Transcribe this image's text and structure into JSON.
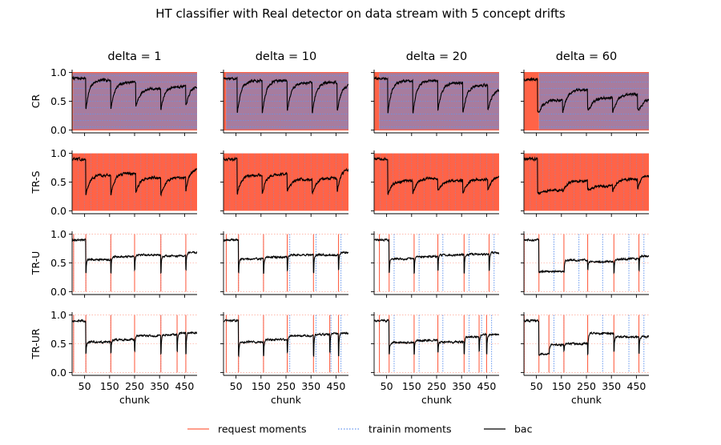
{
  "figure": {
    "title": "HT classifier with Real detector on data stream with 5 concept drifts",
    "colors": {
      "request": "#ff6347",
      "training": "#6495ed",
      "bac": "#000000",
      "full_overlay": "#a77c9e"
    }
  },
  "chart_data": {
    "type": "line",
    "columns": [
      "delta = 1",
      "delta = 10",
      "delta = 20",
      "delta = 60"
    ],
    "deltas": [
      1,
      10,
      20,
      60
    ],
    "rows": [
      "CR",
      "TR-S",
      "TR-U",
      "TR-UR"
    ],
    "xlabel": "chunk",
    "x_ticks": [
      50,
      150,
      250,
      350,
      450
    ],
    "y_ticks": [
      0.0,
      0.5,
      1.0
    ],
    "y_tick_labels": [
      "0.0",
      "0.5",
      "1.0"
    ],
    "xlim": [
      0,
      500
    ],
    "ylim": [
      -0.05,
      1.05
    ],
    "drift_points": [
      55,
      155,
      255,
      355,
      455
    ],
    "legend": {
      "placement": "bottom-center",
      "entries": [
        {
          "label": "request moments",
          "style": "solid",
          "color": "#ff6347"
        },
        {
          "label": "trainin moments",
          "style": "dotted",
          "color": "#6495ed"
        },
        {
          "label": "bac",
          "style": "solid",
          "color": "#000000"
        }
      ]
    },
    "panels": [
      [
        {
          "mode": "full",
          "lead": [
            1,
            4
          ],
          "drops": [
            55,
            155,
            255,
            355,
            455
          ],
          "pre": 0.9,
          "min": 0.37,
          "levels": [
            0.9,
            0.87,
            0.83,
            0.72,
            0.76,
            0.77
          ],
          "recover": 0.2,
          "noise": 0.02
        },
        {
          "mode": "full",
          "lead": [
            1,
            4
          ],
          "drops": [
            55,
            155,
            255,
            355,
            455
          ],
          "pre": 0.9,
          "min": 0.28,
          "levels": [
            0.9,
            0.62,
            0.65,
            0.58,
            0.57,
            0.74
          ],
          "recover": 0.15,
          "noise": 0.02
        },
        {
          "mode": "lines",
          "requests": [
            6,
            55,
            155,
            250,
            355,
            455
          ],
          "trainings": [
            6,
            55,
            155,
            250,
            355,
            455
          ],
          "pre": 0.9,
          "min": 0.34,
          "levels": [
            0.9,
            0.56,
            0.61,
            0.64,
            0.62,
            0.68
          ],
          "recover": 0.0,
          "noise": 0.015
        },
        {
          "mode": "lines",
          "requests": [
            6,
            55,
            155,
            250,
            355,
            420,
            455
          ],
          "trainings": [
            6,
            55,
            155,
            250,
            355,
            420,
            455
          ],
          "pre": 0.9,
          "min": 0.33,
          "levels": [
            0.9,
            0.53,
            0.57,
            0.64,
            0.66,
            0.69
          ],
          "recover": 0.0,
          "noise": 0.015
        }
      ],
      [
        {
          "mode": "full",
          "lead": [
            1,
            10
          ],
          "drops": [
            55,
            155,
            255,
            355,
            455
          ],
          "pre": 0.9,
          "min": 0.3,
          "levels": [
            0.9,
            0.86,
            0.86,
            0.82,
            0.83,
            0.8
          ],
          "recover": 0.25,
          "noise": 0.02
        },
        {
          "mode": "full",
          "lead": [
            1,
            10
          ],
          "drops": [
            55,
            155,
            255,
            355,
            455
          ],
          "pre": 0.9,
          "min": 0.3,
          "levels": [
            0.9,
            0.62,
            0.64,
            0.55,
            0.57,
            0.73
          ],
          "recover": 0.15,
          "noise": 0.02
        },
        {
          "mode": "lines",
          "requests": [
            11,
            60,
            160,
            255,
            360,
            460
          ],
          "trainings": [
            11,
            60,
            160,
            265,
            370,
            470
          ],
          "pre": 0.9,
          "min": 0.33,
          "levels": [
            0.9,
            0.57,
            0.6,
            0.64,
            0.64,
            0.68
          ],
          "recover": 0.0,
          "noise": 0.015
        },
        {
          "mode": "lines",
          "requests": [
            11,
            60,
            160,
            255,
            360,
            425,
            460
          ],
          "trainings": [
            11,
            60,
            160,
            265,
            370,
            430,
            470
          ],
          "pre": 0.9,
          "min": 0.3,
          "levels": [
            0.9,
            0.53,
            0.57,
            0.64,
            0.66,
            0.68
          ],
          "recover": 0.0,
          "noise": 0.015
        }
      ],
      [
        {
          "mode": "full",
          "lead": [
            1,
            20
          ],
          "drops": [
            55,
            155,
            255,
            355,
            455
          ],
          "pre": 0.9,
          "min": 0.3,
          "levels": [
            0.9,
            0.86,
            0.86,
            0.82,
            0.78,
            0.72
          ],
          "recover": 0.25,
          "noise": 0.02
        },
        {
          "mode": "full",
          "lead": [
            1,
            20
          ],
          "drops": [
            55,
            155,
            255,
            355,
            455
          ],
          "pre": 0.9,
          "min": 0.31,
          "levels": [
            0.9,
            0.52,
            0.57,
            0.53,
            0.55,
            0.6
          ],
          "recover": 0.15,
          "noise": 0.02
        },
        {
          "mode": "lines",
          "requests": [
            21,
            60,
            160,
            255,
            360,
            460
          ],
          "trainings": [
            21,
            80,
            180,
            275,
            380,
            480
          ],
          "pre": 0.9,
          "min": 0.33,
          "levels": [
            0.9,
            0.57,
            0.61,
            0.64,
            0.65,
            0.68
          ],
          "recover": 0.0,
          "noise": 0.015
        },
        {
          "mode": "lines",
          "requests": [
            21,
            60,
            160,
            255,
            360,
            420,
            450
          ],
          "trainings": [
            21,
            80,
            180,
            275,
            380,
            430,
            470
          ],
          "pre": 0.9,
          "min": 0.32,
          "levels": [
            0.9,
            0.52,
            0.56,
            0.53,
            0.62,
            0.66
          ],
          "recover": 0.0,
          "noise": 0.015
        }
      ],
      [
        {
          "mode": "full",
          "lead": [
            1,
            60
          ],
          "drops": [
            55,
            155,
            255,
            355,
            455
          ],
          "pre": 0.88,
          "min": 0.32,
          "levels": [
            0.88,
            0.52,
            0.7,
            0.56,
            0.62,
            0.55
          ],
          "recover": 0.25,
          "noise": 0.02
        },
        {
          "mode": "full",
          "lead": [
            1,
            60
          ],
          "drops": [
            55,
            155,
            255,
            355,
            455
          ],
          "pre": 0.9,
          "min": 0.33,
          "levels": [
            0.9,
            0.36,
            0.52,
            0.43,
            0.55,
            0.62
          ],
          "recover": 0.1,
          "noise": 0.02
        },
        {
          "mode": "lines",
          "requests": [
            1,
            60,
            160,
            255,
            360,
            460
          ],
          "trainings": [
            1,
            120,
            220,
            315,
            420,
            480
          ],
          "pre": 0.9,
          "min": 0.33,
          "levels": [
            0.9,
            0.35,
            0.55,
            0.52,
            0.57,
            0.62
          ],
          "recover": 0.0,
          "noise": 0.015
        },
        {
          "mode": "lines",
          "requests": [
            1,
            60,
            100,
            160,
            255,
            360,
            460
          ],
          "trainings": [
            1,
            120,
            160,
            315,
            420,
            480
          ],
          "pre": 0.9,
          "min": 0.32,
          "levels": [
            0.9,
            0.32,
            0.48,
            0.5,
            0.68,
            0.62
          ],
          "recover": 0.0,
          "noise": 0.015
        }
      ]
    ]
  }
}
